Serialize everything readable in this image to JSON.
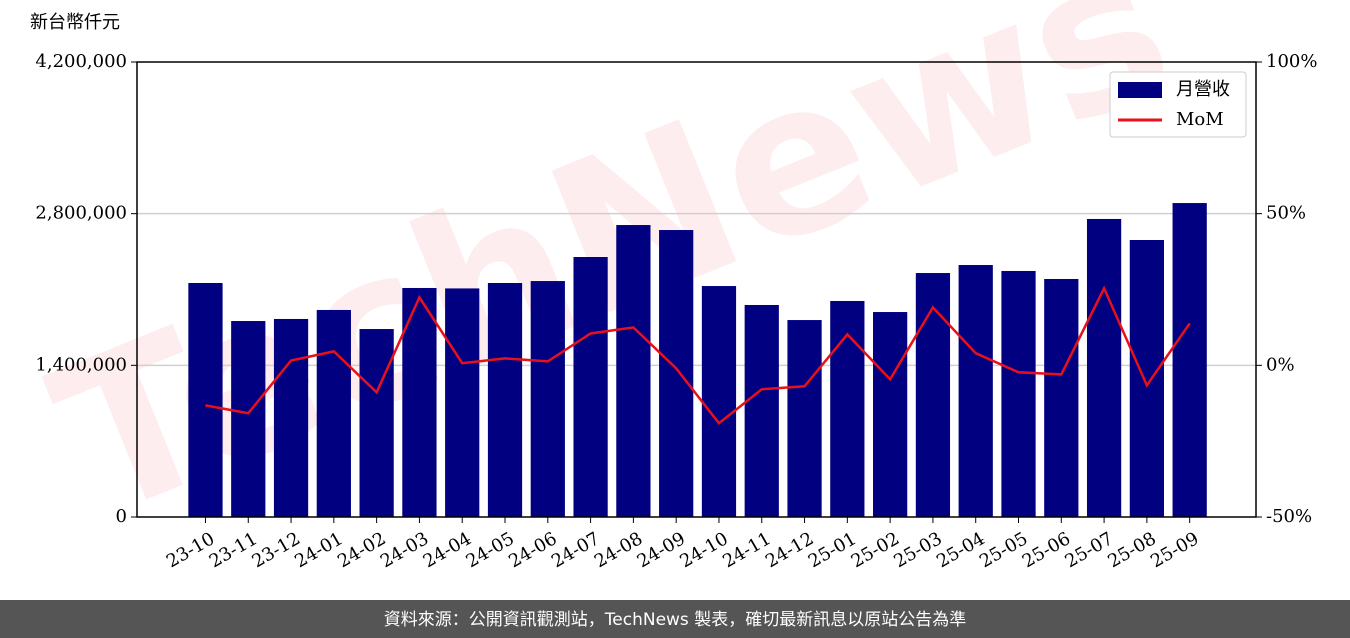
{
  "chart_data": {
    "type": "bar",
    "y_label": "新台幣仟元",
    "categories": [
      "23-10",
      "23-11",
      "23-12",
      "24-01",
      "24-02",
      "24-03",
      "24-04",
      "24-05",
      "24-06",
      "24-07",
      "24-08",
      "24-09",
      "24-10",
      "24-11",
      "24-12",
      "25-01",
      "25-02",
      "25-03",
      "25-04",
      "25-05",
      "25-06",
      "25-07",
      "25-08",
      "25-09"
    ],
    "series": [
      {
        "name": "月營收",
        "type": "bar",
        "color": "#000080",
        "values": [
          2160000,
          1809000,
          1828000,
          1911000,
          1735000,
          2114000,
          2110000,
          2160000,
          2178000,
          2400000,
          2695000,
          2649000,
          2132000,
          1957000,
          1818000,
          1994000,
          1892000,
          2252000,
          2326000,
          2271000,
          2197000,
          2751000,
          2557000,
          2898000
        ]
      },
      {
        "name": "MoM",
        "type": "line",
        "axis": "y2",
        "color": "#e8101a",
        "values": [
          -13.2,
          -15.8,
          1.6,
          4.6,
          -8.9,
          22.4,
          0.7,
          2.3,
          1.3,
          10.5,
          12.5,
          -1.0,
          -19.1,
          -7.9,
          -6.9,
          10.2,
          -4.6,
          19.1,
          4.0,
          -2.3,
          -3.0,
          25.4,
          -6.6,
          13.8
        ]
      }
    ],
    "ylim": [
      0,
      4200000
    ],
    "yticks": [
      0,
      {
        "value": 1400000,
        "label": "1,400,000"
      },
      {
        "value": 2800000,
        "label": "2,800,000"
      },
      {
        "value": 4200000,
        "label": "4,200,000"
      }
    ],
    "y2lim": [
      -50,
      100
    ],
    "y2ticks": [
      {
        "value": -50,
        "label": "-50%"
      },
      {
        "value": 0,
        "label": "0%"
      },
      {
        "value": 50,
        "label": "50%"
      },
      {
        "value": 100,
        "label": "100%"
      }
    ],
    "grid": true,
    "legend": "upper right",
    "watermark": "TechNews",
    "footer": "資料來源：公開資訊觀測站，TechNews 製表，確切最新訊息以原站公告為準"
  }
}
